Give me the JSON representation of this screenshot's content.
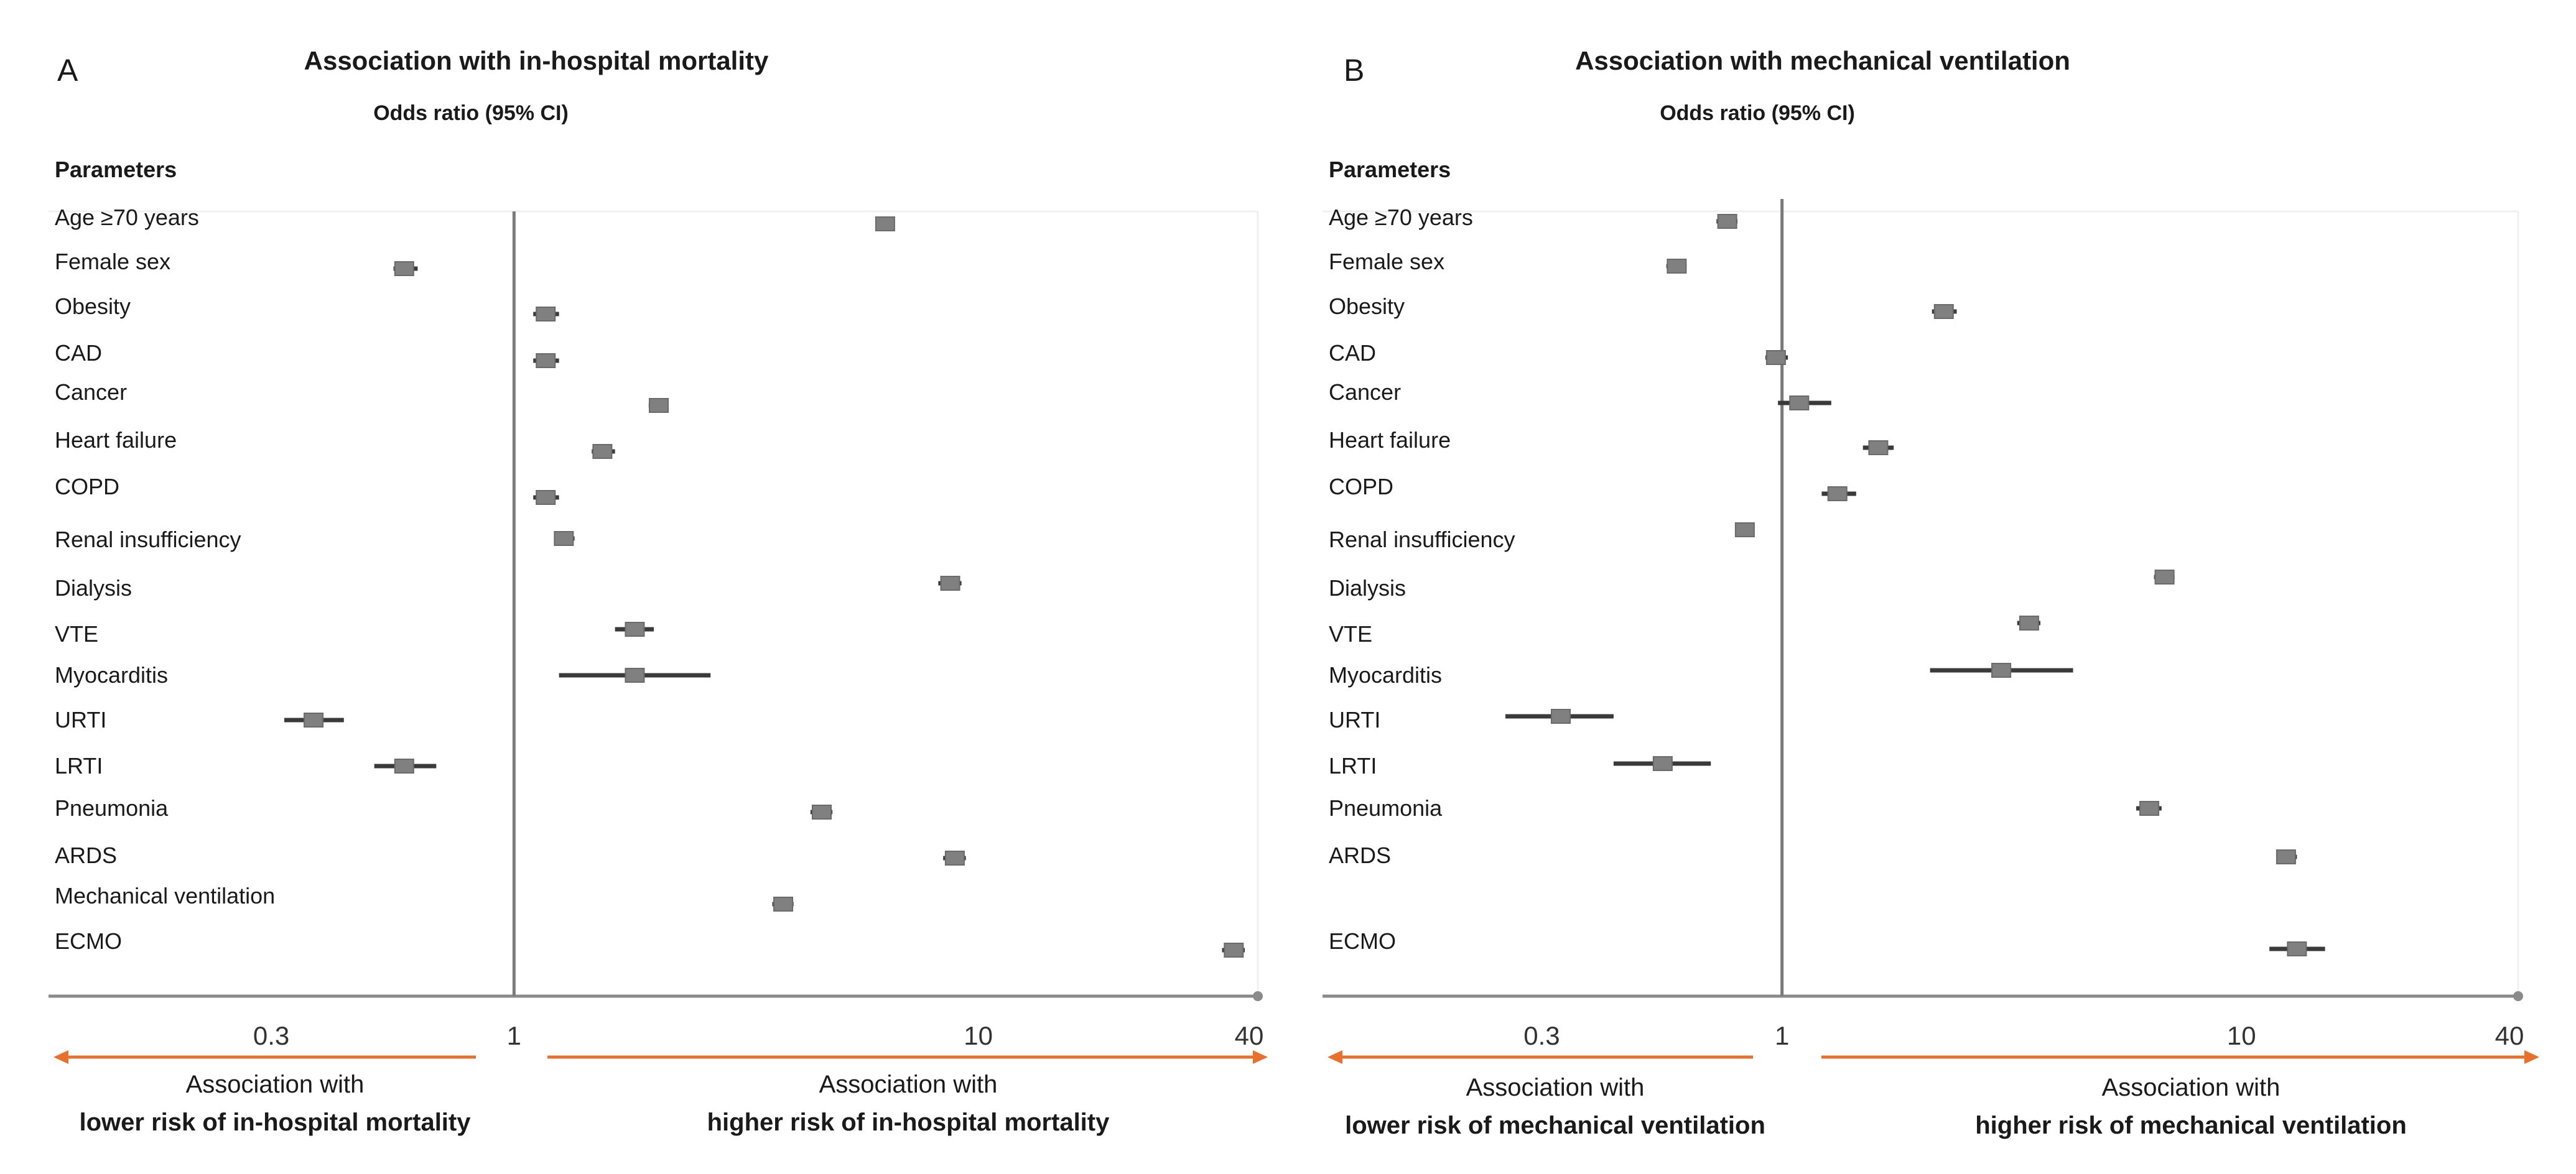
{
  "chart_data": [
    {
      "type": "forest",
      "panel_label": "A",
      "title": "Association with in-hospital mortality",
      "subtitle": "Odds ratio (95% CI)",
      "parameters_header": "Parameters",
      "x_scale": "log",
      "xlim": [
        0.1,
        40
      ],
      "reference_line": 1,
      "ticks": [
        {
          "value": 0.3,
          "label": "0.3"
        },
        {
          "value": 1,
          "label": "1"
        },
        {
          "value": 10,
          "label": "10"
        },
        {
          "value": 40,
          "label": "40"
        }
      ],
      "rows": [
        {
          "label": "Age ≥70 years",
          "or": 6.3,
          "lo": 6.0,
          "hi": 6.6
        },
        {
          "label": "Female sex",
          "or": 0.58,
          "lo": 0.55,
          "hi": 0.62
        },
        {
          "label": "Obesity",
          "or": 1.17,
          "lo": 1.1,
          "hi": 1.25
        },
        {
          "label": "CAD",
          "or": 1.17,
          "lo": 1.1,
          "hi": 1.25
        },
        {
          "label": "Cancer",
          "or": 2.05,
          "lo": 1.95,
          "hi": 2.15
        },
        {
          "label": "Heart failure",
          "or": 1.55,
          "lo": 1.47,
          "hi": 1.65
        },
        {
          "label": "COPD",
          "or": 1.17,
          "lo": 1.1,
          "hi": 1.25
        },
        {
          "label": "Renal insufficiency",
          "or": 1.28,
          "lo": 1.22,
          "hi": 1.35
        },
        {
          "label": "Dialysis",
          "or": 8.7,
          "lo": 8.2,
          "hi": 9.2
        },
        {
          "label": "VTE",
          "or": 1.82,
          "lo": 1.65,
          "hi": 2.0
        },
        {
          "label": "Myocarditis",
          "or": 1.82,
          "lo": 1.25,
          "hi": 2.65
        },
        {
          "label": "URTI",
          "or": 0.37,
          "lo": 0.32,
          "hi": 0.43
        },
        {
          "label": "LRTI",
          "or": 0.58,
          "lo": 0.5,
          "hi": 0.68
        },
        {
          "label": "Pneumonia",
          "or": 4.6,
          "lo": 4.35,
          "hi": 4.85
        },
        {
          "label": "ARDS",
          "or": 8.9,
          "lo": 8.4,
          "hi": 9.4
        },
        {
          "label": "Mechanical ventilation",
          "or": 3.8,
          "lo": 3.6,
          "hi": 4.0
        },
        {
          "label": "ECMO",
          "or": 35.5,
          "lo": 33.5,
          "hi": 37.5
        }
      ],
      "lower_label": {
        "line1": "Association with",
        "line2": "lower risk of in-hospital mortality"
      },
      "higher_label": {
        "line1": "Association with",
        "line2": "higher risk of in-hospital mortality"
      }
    },
    {
      "type": "forest",
      "panel_label": "B",
      "title": "Association with mechanical ventilation",
      "subtitle": "Odds ratio (95% CI)",
      "parameters_header": "Parameters",
      "x_scale": "log",
      "xlim": [
        0.1,
        40
      ],
      "reference_line": 1,
      "ticks": [
        {
          "value": 0.3,
          "label": "0.3"
        },
        {
          "value": 1,
          "label": "1"
        },
        {
          "value": 10,
          "label": "10"
        },
        {
          "value": 40,
          "label": "40"
        }
      ],
      "rows": [
        {
          "label": "Age ≥70 years",
          "or": 0.76,
          "lo": 0.72,
          "hi": 0.8
        },
        {
          "label": "Female sex",
          "or": 0.59,
          "lo": 0.56,
          "hi": 0.62
        },
        {
          "label": "Obesity",
          "or": 2.25,
          "lo": 2.12,
          "hi": 2.4
        },
        {
          "label": "CAD",
          "or": 0.97,
          "lo": 0.92,
          "hi": 1.03
        },
        {
          "label": "Cancer",
          "or": 1.09,
          "lo": 0.98,
          "hi": 1.28
        },
        {
          "label": "Heart failure",
          "or": 1.62,
          "lo": 1.5,
          "hi": 1.75
        },
        {
          "label": "COPD",
          "or": 1.32,
          "lo": 1.22,
          "hi": 1.45
        },
        {
          "label": "Renal insufficiency",
          "or": 0.83,
          "lo": 0.79,
          "hi": 0.87
        },
        {
          "label": "Dialysis",
          "or": 6.8,
          "lo": 6.45,
          "hi": 7.15
        },
        {
          "label": "VTE",
          "or": 3.45,
          "lo": 3.25,
          "hi": 3.65
        },
        {
          "label": "Myocarditis",
          "or": 3.0,
          "lo": 2.1,
          "hi": 4.3
        },
        {
          "label": "URTI",
          "or": 0.33,
          "lo": 0.25,
          "hi": 0.43
        },
        {
          "label": "LRTI",
          "or": 0.55,
          "lo": 0.43,
          "hi": 0.7
        },
        {
          "label": "Pneumonia",
          "or": 6.3,
          "lo": 5.9,
          "hi": 6.7
        },
        {
          "label": "ARDS",
          "or": 12.5,
          "lo": 11.9,
          "hi": 13.2
        },
        {
          "label": "ECMO",
          "or": 13.2,
          "lo": 11.5,
          "hi": 15.2
        }
      ],
      "lower_label": {
        "line1": "Association with",
        "line2": "lower risk of mechanical ventilation"
      },
      "higher_label": {
        "line1": "Association with",
        "line2": "higher risk of mechanical ventilation"
      }
    }
  ],
  "colors": {
    "axis": "#8a8a8a",
    "ref_line": "#7a7a7a",
    "ci_line": "#3a3a3a",
    "marker": "#808080",
    "arrow": "#e8702a",
    "text": "#1a1a1a"
  }
}
